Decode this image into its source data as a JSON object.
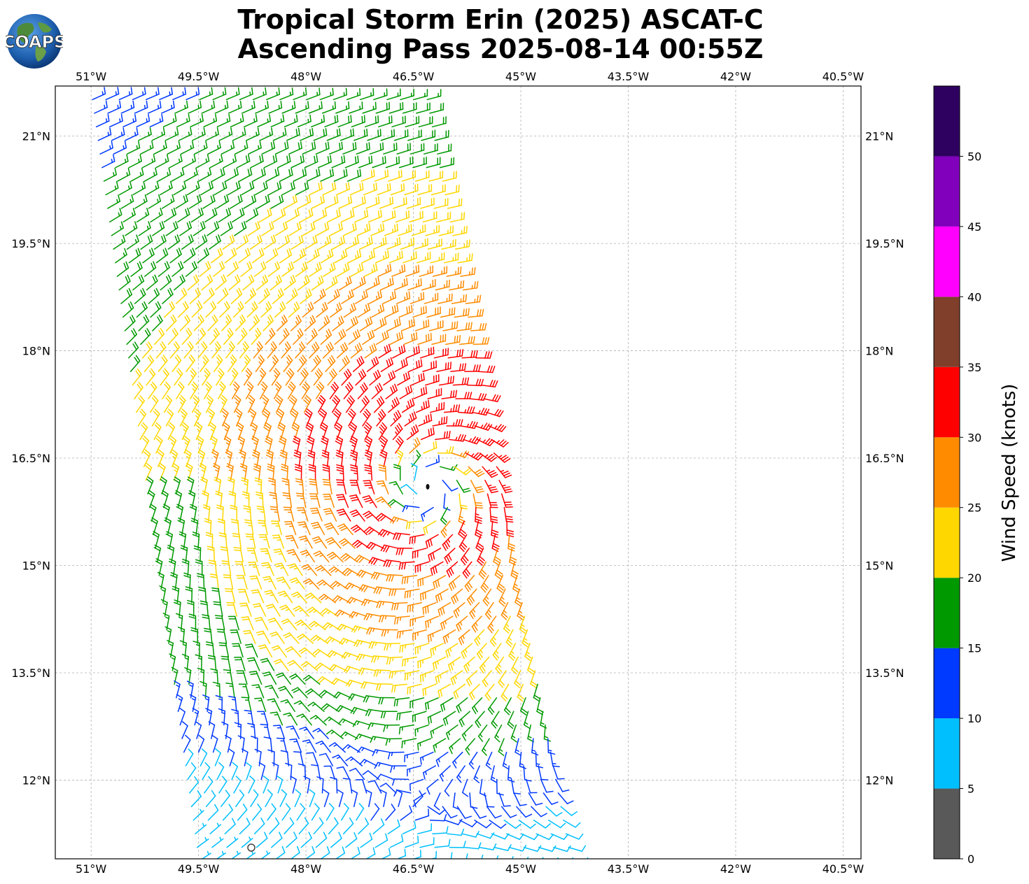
{
  "header": {
    "title_line1": "Tropical Storm Erin (2025) ASCAT-C",
    "title_line2": "Ascending Pass 2025-08-14 00:55Z",
    "logo_text": "COAPS"
  },
  "map": {
    "lon_range": [
      -51.5,
      -40.25
    ],
    "lat_range": [
      10.9,
      21.7
    ],
    "lon_ticks": [
      {
        "value": -51,
        "label": "51°W"
      },
      {
        "value": -49.5,
        "label": "49.5°W"
      },
      {
        "value": -48,
        "label": "48°W"
      },
      {
        "value": -46.5,
        "label": "46.5°W"
      },
      {
        "value": -45,
        "label": "45°W"
      },
      {
        "value": -43.5,
        "label": "43.5°W"
      },
      {
        "value": -42,
        "label": "42°W"
      },
      {
        "value": -40.5,
        "label": "40.5°W"
      }
    ],
    "lat_ticks": [
      {
        "value": 21,
        "label": "21°N"
      },
      {
        "value": 19.5,
        "label": "19.5°N"
      },
      {
        "value": 18,
        "label": "18°N"
      },
      {
        "value": 16.5,
        "label": "16.5°N"
      },
      {
        "value": 15,
        "label": "15°N"
      },
      {
        "value": 13.5,
        "label": "13.5°N"
      },
      {
        "value": 12,
        "label": "12°N"
      }
    ],
    "gridlines": true,
    "storm_center": {
      "lon": -46.3,
      "lat": 16.1
    },
    "swath": {
      "top_lon_range": [
        -51.1,
        -46.25
      ],
      "bottom_lon_range": [
        -49.6,
        -44.2
      ],
      "top_lat": 21.7,
      "bottom_lat": 10.9
    }
  },
  "colorbar": {
    "label": "Wind Speed (knots)",
    "ticks": [
      "0",
      "5",
      "10",
      "15",
      "20",
      "25",
      "30",
      "35",
      "40",
      "45",
      "50"
    ],
    "bins": [
      {
        "min": 0,
        "max": 5,
        "color": "#595959"
      },
      {
        "min": 5,
        "max": 10,
        "color": "#00bfff"
      },
      {
        "min": 10,
        "max": 15,
        "color": "#0039ff"
      },
      {
        "min": 15,
        "max": 20,
        "color": "#009900"
      },
      {
        "min": 20,
        "max": 25,
        "color": "#ffd700"
      },
      {
        "min": 25,
        "max": 30,
        "color": "#ff8c00"
      },
      {
        "min": 30,
        "max": 35,
        "color": "#ff0000"
      },
      {
        "min": 35,
        "max": 40,
        "color": "#7f3f2b"
      },
      {
        "min": 40,
        "max": 45,
        "color": "#ff00ff"
      },
      {
        "min": 45,
        "max": 50,
        "color": "#8000bb"
      },
      {
        "min": 50,
        "max": 55,
        "color": "#2e005f"
      }
    ]
  }
}
